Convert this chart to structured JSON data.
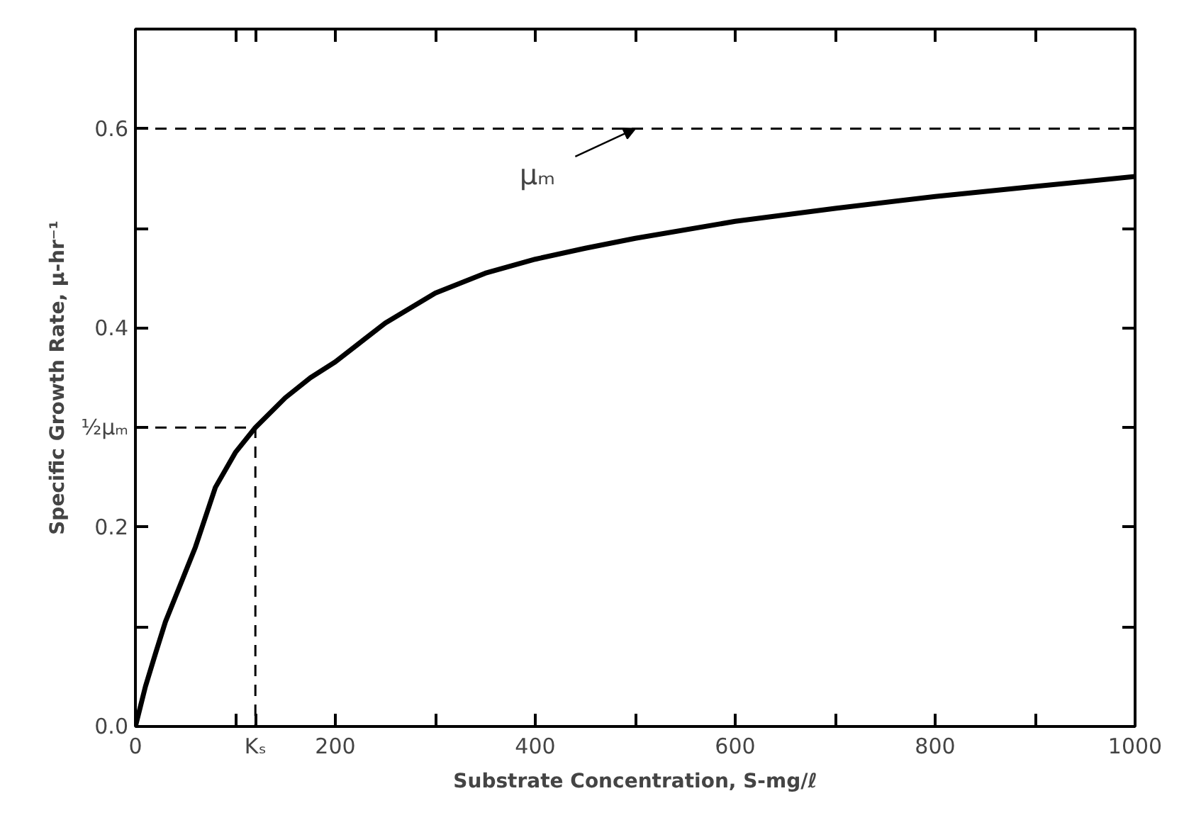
{
  "chart_data": {
    "type": "line",
    "xlabel": "Substrate Concentration, S-mg/ℓ",
    "ylabel": "Specific Growth Rate, μ-hr⁻¹",
    "xlim": [
      0,
      1000
    ],
    "ylim": [
      0,
      0.7
    ],
    "xticks": [
      0,
      {
        "value": 100,
        "label": null
      },
      {
        "value": 120,
        "label": "Kₛ"
      },
      200,
      {
        "value": 300,
        "label": null
      },
      400,
      {
        "value": 500,
        "label": null
      },
      600,
      {
        "value": 700,
        "label": null
      },
      800,
      {
        "value": 900,
        "label": null
      },
      1000
    ],
    "yticks": [
      {
        "value": 0,
        "label": "0.0"
      },
      {
        "value": 0.1,
        "label": null
      },
      0.2,
      {
        "value": 0.3,
        "label": "½μₘ"
      },
      0.4,
      {
        "value": 0.5,
        "label": null
      },
      0.6
    ],
    "series": [
      {
        "color": "#000000",
        "x": [
          0,
          5,
          10,
          20,
          30,
          40,
          50,
          60,
          80,
          100,
          120,
          150,
          175,
          200,
          250,
          300,
          350,
          400,
          450,
          500,
          600,
          700,
          800,
          900,
          1000
        ],
        "values": [
          0,
          0.02,
          0.04,
          0.073,
          0.105,
          0.13,
          0.155,
          0.18,
          0.24,
          0.275,
          0.3,
          0.33,
          0.35,
          0.366,
          0.405,
          0.435,
          0.455,
          0.469,
          0.48,
          0.49,
          0.507,
          0.52,
          0.532,
          0.542,
          0.552
        ]
      },
      {
        "color": "#000000",
        "line_style": "dashed",
        "x": [
          0,
          120,
          120
        ],
        "values": [
          0.3,
          0.3,
          0
        ]
      }
    ],
    "ref_lines": [
      {
        "axis": "y",
        "value": 0.6,
        "line_style": "dashed",
        "color": "#000000"
      }
    ],
    "annotations": [
      {
        "text": "μₘ",
        "x": 500,
        "y": 0.6
      }
    ],
    "grid": false
  }
}
